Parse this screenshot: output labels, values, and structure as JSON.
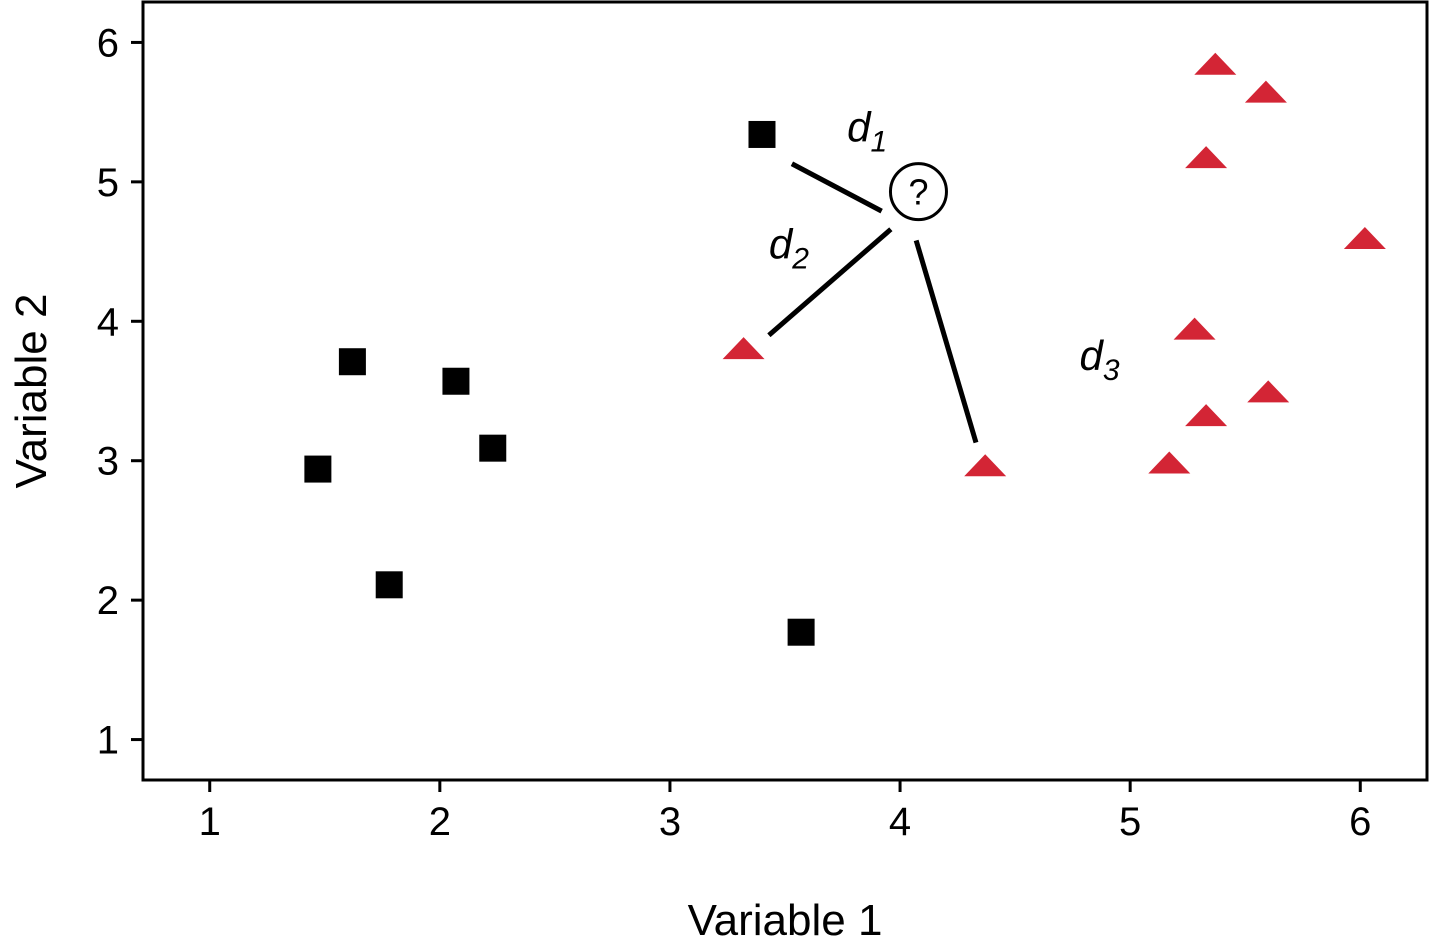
{
  "chart_data": {
    "type": "scatter",
    "xlabel": "Variable 1",
    "ylabel": "Variable 2",
    "xlim": [
      0.71,
      6.29
    ],
    "ylim": [
      0.71,
      6.29
    ],
    "xticks": [
      "1",
      "2",
      "3",
      "4",
      "5",
      "6"
    ],
    "yticks": [
      "1",
      "2",
      "3",
      "4",
      "5",
      "6"
    ],
    "grid": false,
    "series": [
      {
        "marker": "square",
        "color": "#000000",
        "points": [
          [
            1.47,
            2.94
          ],
          [
            1.62,
            3.71
          ],
          [
            1.78,
            2.11
          ],
          [
            2.07,
            3.57
          ],
          [
            2.23,
            3.09
          ],
          [
            3.4,
            5.34
          ],
          [
            3.57,
            1.77
          ]
        ]
      },
      {
        "marker": "triangle",
        "color": "#D32535",
        "points": [
          [
            3.32,
            3.8
          ],
          [
            4.37,
            2.96
          ],
          [
            5.17,
            2.98
          ],
          [
            5.28,
            3.94
          ],
          [
            5.33,
            3.32
          ],
          [
            5.33,
            5.17
          ],
          [
            5.37,
            5.84
          ],
          [
            5.59,
            5.64
          ],
          [
            5.6,
            3.49
          ],
          [
            6.02,
            4.59
          ]
        ]
      }
    ],
    "query_point": {
      "x": 4.08,
      "y": 4.93,
      "label": "?"
    },
    "distances": [
      {
        "letter": "d",
        "sub": "1",
        "from": [
          3.53,
          5.13
        ],
        "to": [
          3.92,
          4.79
        ],
        "label_at": [
          3.77,
          5.29
        ]
      },
      {
        "letter": "d",
        "sub": "2",
        "from": [
          3.96,
          4.66
        ],
        "to": [
          3.43,
          3.9
        ],
        "label_at": [
          3.43,
          4.45
        ]
      },
      {
        "letter": "d",
        "sub": "3",
        "from": [
          4.07,
          4.58
        ],
        "to": [
          4.33,
          3.13
        ],
        "label_at": [
          4.78,
          3.65
        ]
      }
    ]
  }
}
